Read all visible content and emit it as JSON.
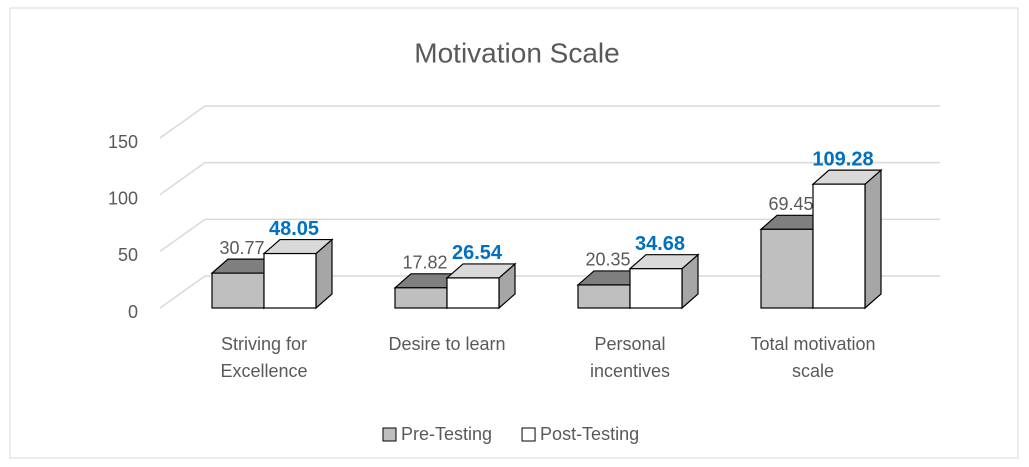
{
  "chart_data": {
    "type": "bar3d",
    "title": "Motivation Scale",
    "categories": [
      "Striving for Excellence",
      "Desire to learn",
      "Personal incentives",
      "Total motivation scale"
    ],
    "series": [
      {
        "name": "Pre-Testing",
        "color": "#bfbfbf",
        "values": [
          30.77,
          17.82,
          20.35,
          69.45
        ]
      },
      {
        "name": "Post-Testing",
        "color": "#ffffff",
        "values": [
          48.05,
          26.54,
          34.68,
          109.28
        ]
      }
    ],
    "ylim": [
      0,
      150
    ],
    "yticks": [
      0,
      50,
      100,
      150
    ],
    "grid": true,
    "legend": "bottom"
  }
}
